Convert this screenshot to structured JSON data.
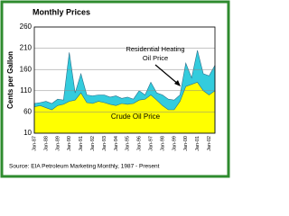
{
  "chart_data": {
    "type": "area",
    "title": "Monthly Prices",
    "y_label": "Cents per Gallon",
    "source": "Source: EIA Petroleum Marketing Monthly, 1987 - Present",
    "annotations": [
      "Residential Heating Oil Price",
      "Crude Oil Price"
    ],
    "categories": [
      "Jan-87",
      null,
      "Jan-88",
      null,
      "Jan-89",
      null,
      "Jan-90",
      null,
      "Jan-91",
      null,
      "Jan-92",
      null,
      "Jan-93",
      null,
      "Jan-94",
      null,
      "Jan-95",
      null,
      "Jan-96",
      null,
      "Jan-97",
      null,
      "Jan-98",
      null,
      "Jan-99",
      null,
      "Jan-00",
      null,
      "Jan-01",
      null,
      "Jan-02",
      null
    ],
    "series": [
      {
        "name": "Residential Heating Oil Price",
        "color": "#33ccdd",
        "values": [
          80,
          82,
          85,
          80,
          90,
          88,
          200,
          105,
          150,
          100,
          98,
          100,
          100,
          95,
          98,
          92,
          95,
          90,
          110,
          100,
          130,
          105,
          100,
          90,
          88,
          100,
          175,
          140,
          205,
          150,
          145,
          170
        ]
      },
      {
        "name": "Crude Oil Price",
        "color": "#ffff00",
        "values": [
          72,
          75,
          70,
          65,
          75,
          78,
          85,
          88,
          105,
          82,
          80,
          85,
          82,
          78,
          75,
          80,
          78,
          80,
          88,
          90,
          100,
          88,
          75,
          65,
          65,
          85,
          120,
          125,
          130,
          110,
          100,
          110
        ]
      }
    ],
    "ylim": [
      10,
      260
    ],
    "yticks": [
      10,
      60,
      110,
      160,
      210,
      260
    ],
    "grid": true
  }
}
